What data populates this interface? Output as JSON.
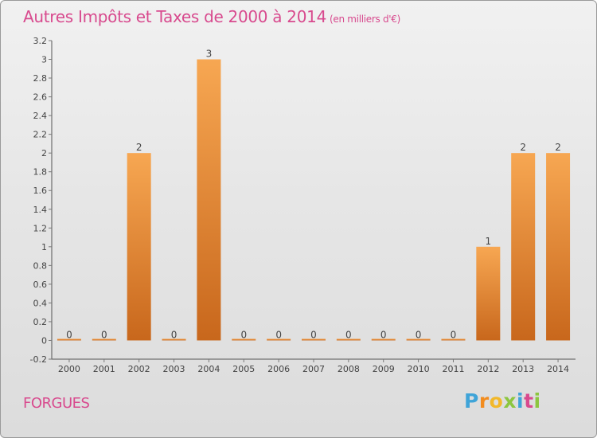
{
  "header": {
    "title": "Autres Impôts et Taxes de 2000 à 2014",
    "unit": "(en milliers d'€)"
  },
  "footer": {
    "commune": "FORGUES",
    "brand_letters": [
      "P",
      "r",
      "o",
      "x",
      "i",
      "t",
      "i"
    ],
    "brand_colors": [
      "#3fa4d8",
      "#f28c1e",
      "#f2b82a",
      "#8cc63f",
      "#3fa4d8",
      "#d84a8e",
      "#8cc63f"
    ]
  },
  "colors": {
    "title": "#d84a8e",
    "bar_top": "#f7a752",
    "bar_bottom": "#c8671c",
    "axis": "#555555",
    "grid_tick": "#777777",
    "label": "#444444"
  },
  "chart_data": {
    "type": "bar",
    "categories": [
      "2000",
      "2001",
      "2002",
      "2003",
      "2004",
      "2005",
      "2006",
      "2007",
      "2008",
      "2009",
      "2010",
      "2011",
      "2012",
      "2013",
      "2014"
    ],
    "values": [
      0,
      0,
      2,
      0,
      3,
      0,
      0,
      0,
      0,
      0,
      0,
      0,
      1,
      2,
      2
    ],
    "data_labels": [
      "0",
      "0",
      "2",
      "0",
      "3",
      "0",
      "0",
      "0",
      "0",
      "0",
      "0",
      "0",
      "1",
      "2",
      "2"
    ],
    "yticks": [
      -0.2,
      0,
      0.2,
      0.4,
      0.6,
      0.8,
      1,
      1.2,
      1.4,
      1.6,
      1.8,
      2,
      2.2,
      2.4,
      2.6,
      2.8,
      3,
      3.2
    ],
    "ytick_labels": [
      "-0.2",
      "0",
      "0.2",
      "0.4",
      "0.6",
      "0.8",
      "1",
      "1.2",
      "1.4",
      "1.6",
      "1.8",
      "2",
      "2.2",
      "2.4",
      "2.6",
      "2.8",
      "3",
      "3.2"
    ],
    "ylim": [
      -0.2,
      3.2
    ],
    "title": "Autres Impôts et Taxes de 2000 à 2014",
    "ylabel": "",
    "xlabel": "",
    "grid": false,
    "legend": "none"
  }
}
